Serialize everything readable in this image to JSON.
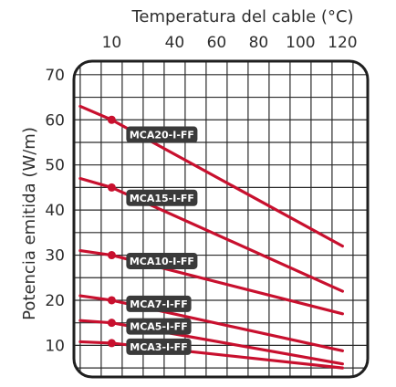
{
  "chart_data": {
    "type": "line",
    "title": "",
    "xlabel": "Temperatura del cable (°C)",
    "ylabel": "Potencia emitida (W/m)",
    "x_ticks": [
      10,
      40,
      60,
      80,
      100,
      120
    ],
    "y_ticks": [
      10,
      20,
      30,
      40,
      50,
      60,
      70
    ],
    "xlim": [
      -8,
      132
    ],
    "ylim": [
      3,
      73
    ],
    "grid": true,
    "series_color": "#c8102e",
    "label_background": "#3a3a3a",
    "series": [
      {
        "name": "MCA20-I-FF",
        "points": [
          {
            "x": -5,
            "y": 63
          },
          {
            "x": 10,
            "y": 60
          },
          {
            "x": 120,
            "y": 32
          }
        ],
        "marker_x": 10,
        "label_anchor": {
          "x": 10,
          "y": 56.5
        }
      },
      {
        "name": "MCA15-I-FF",
        "points": [
          {
            "x": -5,
            "y": 47
          },
          {
            "x": 10,
            "y": 45
          },
          {
            "x": 120,
            "y": 22
          }
        ],
        "marker_x": 10,
        "label_anchor": {
          "x": 10,
          "y": 42.5
        }
      },
      {
        "name": "MCA10-I-FF",
        "points": [
          {
            "x": -5,
            "y": 31
          },
          {
            "x": 10,
            "y": 30
          },
          {
            "x": 120,
            "y": 17
          }
        ],
        "marker_x": 10,
        "label_anchor": {
          "x": 10,
          "y": 28.5
        }
      },
      {
        "name": "MCA7-I-FF",
        "points": [
          {
            "x": -5,
            "y": 21
          },
          {
            "x": 10,
            "y": 20
          },
          {
            "x": 120,
            "y": 8.8
          }
        ],
        "marker_x": 10,
        "label_anchor": {
          "x": 10,
          "y": 19
        }
      },
      {
        "name": "MCA5-I-FF",
        "points": [
          {
            "x": -5,
            "y": 15.5
          },
          {
            "x": 10,
            "y": 15
          },
          {
            "x": 120,
            "y": 5.9
          }
        ],
        "marker_x": 10,
        "label_anchor": {
          "x": 10,
          "y": 14
        }
      },
      {
        "name": "MCA3-I-FF",
        "points": [
          {
            "x": -5,
            "y": 10.8
          },
          {
            "x": 10,
            "y": 10.5
          },
          {
            "x": 120,
            "y": 5
          }
        ],
        "marker_x": 10,
        "label_anchor": {
          "x": 10,
          "y": 9.5
        }
      }
    ]
  }
}
